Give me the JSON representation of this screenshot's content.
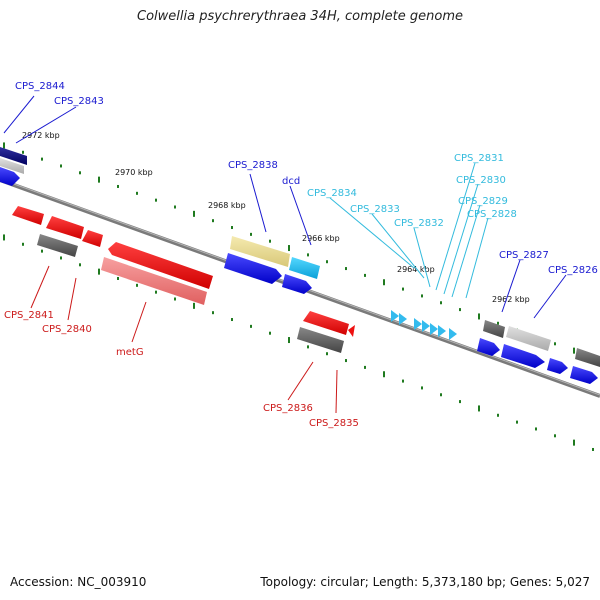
{
  "title": "Colwellia psychrerythraea 34H, complete genome",
  "footer": {
    "accession": "Accession: NC_003910",
    "info": "Topology: circular; Length: 5,373,180 bp; Genes: 5,027"
  },
  "colors": {
    "backbone": "#888888",
    "tick": "#1f7a1f",
    "forward_gene": "#1515ee",
    "reverse_gene": "#ee1515",
    "forward_label": "#1a1ad0",
    "reverse_label": "#cc1a1a",
    "trna": "#33bbee",
    "trna_label": "#33bbdd"
  },
  "scale_labels": [
    "2972 kbp",
    "2970 kbp",
    "2968 kbp",
    "2966 kbp",
    "2964 kbp",
    "2962 kbp"
  ],
  "labels": {
    "cps2844": "CPS_2844",
    "cps2843": "CPS_2843",
    "cps2838": "CPS_2838",
    "dcd": "dcd",
    "cps2834": "CPS_2834",
    "cps2833": "CPS_2833",
    "cps2832": "CPS_2832",
    "cps2831": "CPS_2831",
    "cps2830": "CPS_2830",
    "cps2829": "CPS_2829",
    "cps2828": "CPS_2828",
    "cps2827": "CPS_2827",
    "cps2826": "CPS_2826",
    "cps2841": "CPS_2841",
    "cps2840": "CPS_2840",
    "metg": "metG",
    "cps2836": "CPS_2836",
    "cps2835": "CPS_2835"
  }
}
